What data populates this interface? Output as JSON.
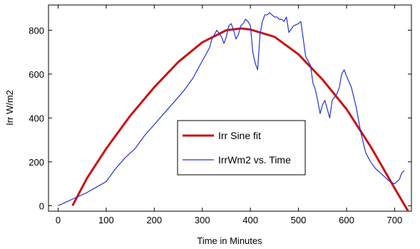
{
  "chart_data": {
    "type": "line",
    "title": "",
    "xlabel": "Time in Minutes",
    "ylabel": "Irr W/m2",
    "xlim": [
      -20,
      735
    ],
    "ylim": [
      -25,
      915
    ],
    "xticks": [
      0,
      100,
      200,
      300,
      400,
      500,
      600,
      700
    ],
    "yticks": [
      0,
      200,
      400,
      600,
      800
    ],
    "grid": false,
    "legend_position": "center",
    "series": [
      {
        "name": "Irr Sine fit",
        "color": "#cc1111",
        "x": [
          30,
          60,
          100,
          150,
          200,
          250,
          300,
          350,
          380,
          400,
          450,
          500,
          550,
          600,
          650,
          700,
          728
        ],
        "y": [
          0,
          125,
          260,
          410,
          540,
          655,
          745,
          800,
          808,
          803,
          770,
          690,
          575,
          440,
          270,
          80,
          -25
        ]
      },
      {
        "name": "IrrWm2 vs. Time",
        "color": "#2233cc",
        "x": [
          0,
          20,
          40,
          60,
          80,
          100,
          120,
          140,
          160,
          180,
          200,
          220,
          240,
          260,
          280,
          290,
          300,
          310,
          315,
          320,
          325,
          330,
          340,
          345,
          350,
          355,
          360,
          365,
          370,
          375,
          380,
          385,
          390,
          395,
          400,
          405,
          410,
          415,
          420,
          425,
          430,
          435,
          440,
          445,
          450,
          455,
          460,
          465,
          470,
          475,
          480,
          490,
          500,
          505,
          510,
          515,
          520,
          525,
          530,
          535,
          540,
          545,
          550,
          555,
          560,
          565,
          570,
          580,
          585,
          590,
          595,
          600,
          610,
          620,
          630,
          640,
          650,
          660,
          670,
          680,
          690,
          700,
          710,
          715,
          720
        ],
        "y": [
          0,
          20,
          40,
          60,
          85,
          110,
          170,
          220,
          260,
          320,
          370,
          420,
          470,
          520,
          580,
          620,
          660,
          700,
          720,
          760,
          780,
          800,
          770,
          740,
          770,
          820,
          830,
          800,
          760,
          780,
          820,
          830,
          850,
          840,
          820,
          700,
          650,
          620,
          780,
          840,
          870,
          870,
          880,
          870,
          860,
          860,
          850,
          850,
          840,
          860,
          790,
          820,
          830,
          840,
          760,
          680,
          660,
          640,
          560,
          530,
          480,
          420,
          460,
          480,
          440,
          400,
          480,
          510,
          540,
          600,
          620,
          590,
          540,
          450,
          330,
          240,
          200,
          170,
          150,
          130,
          110,
          100,
          120,
          150,
          160
        ]
      }
    ]
  }
}
